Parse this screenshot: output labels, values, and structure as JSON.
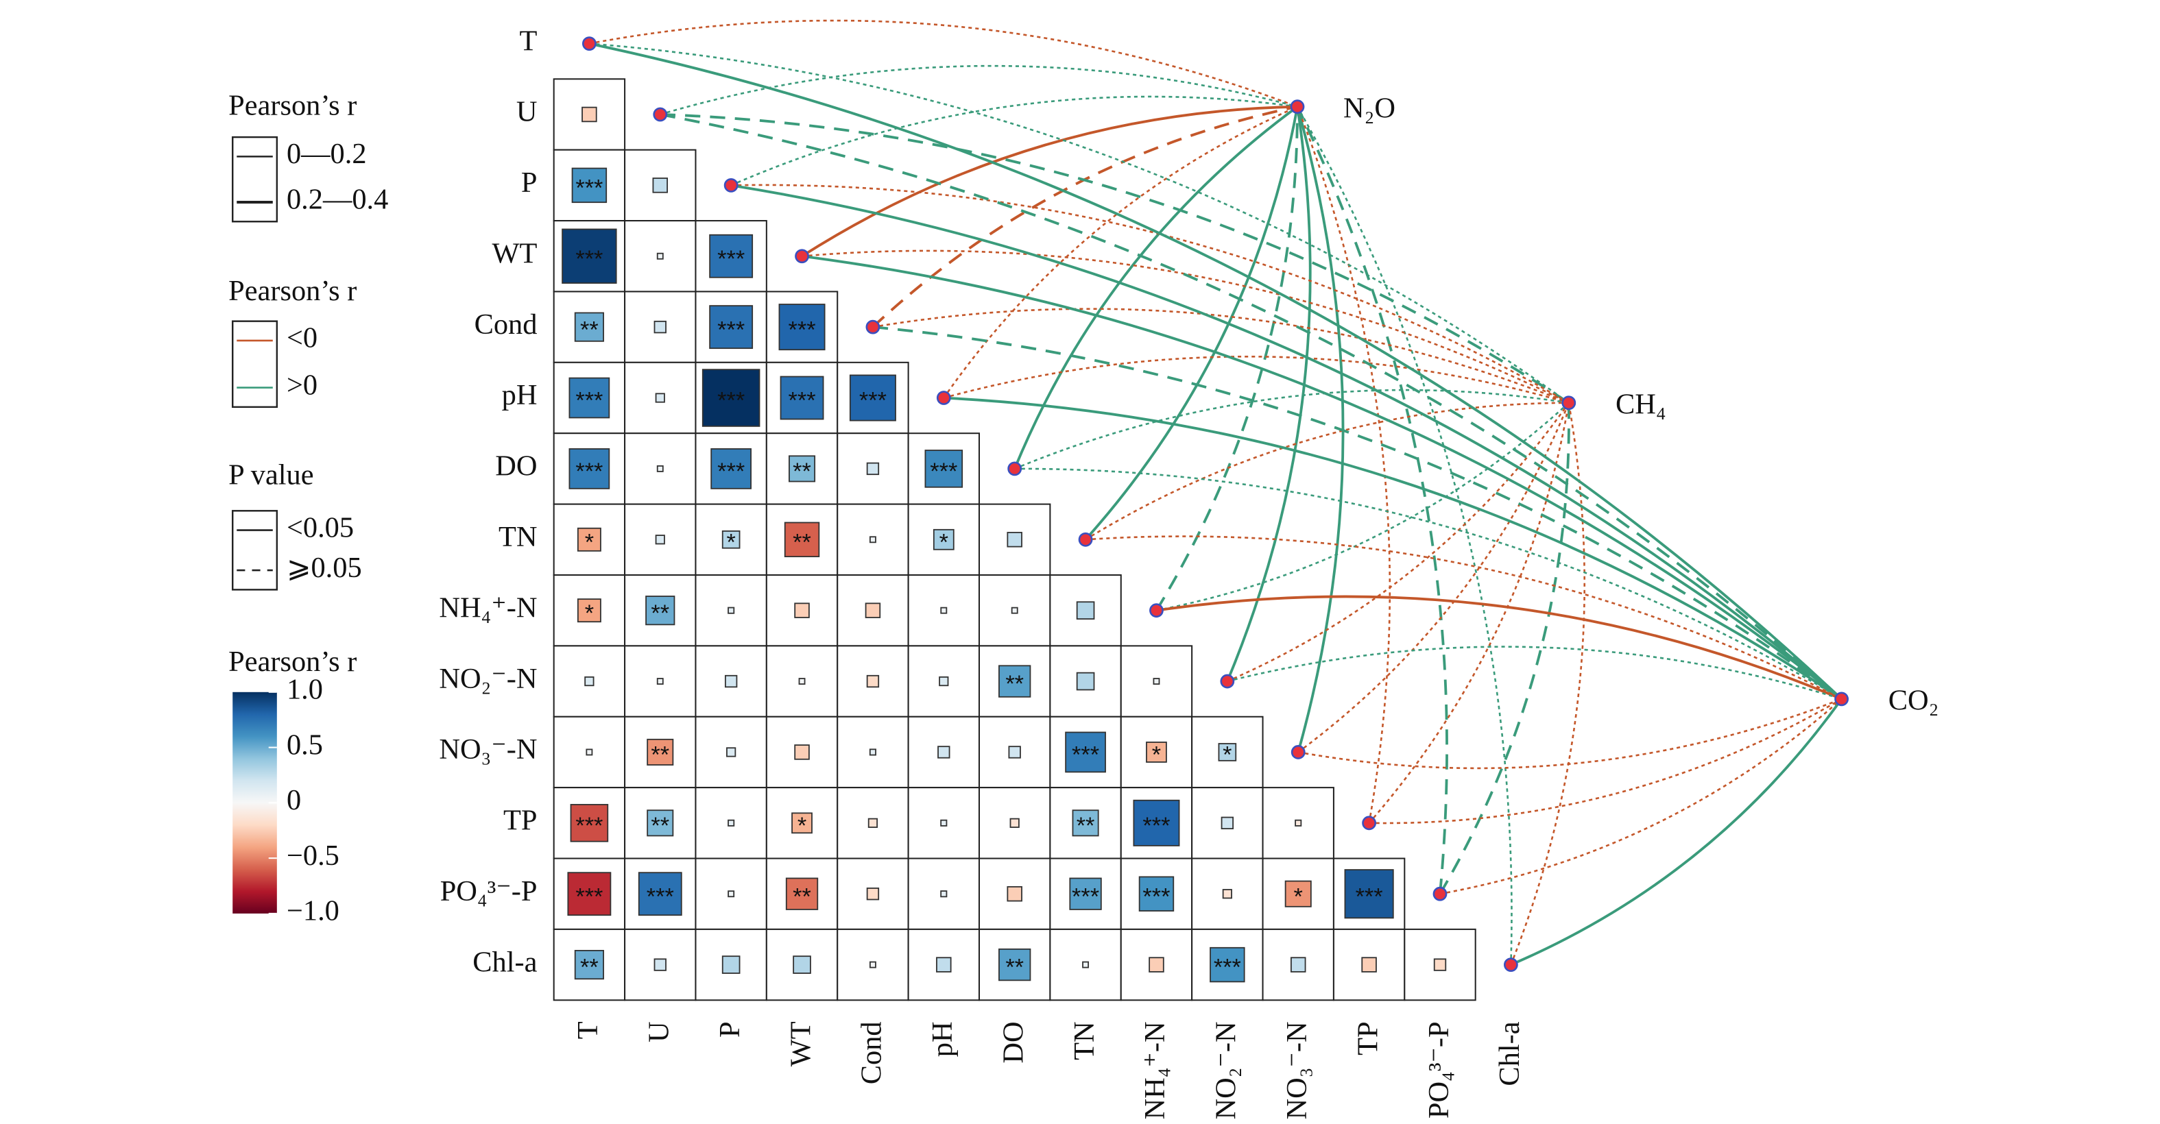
{
  "chart_data": {
    "type": "correlogram",
    "variables": [
      "T",
      "U",
      "P",
      "WT",
      "Cond",
      "pH",
      "DO",
      "TN",
      "NH₄⁺-N",
      "NO₂⁻-N",
      "NO₃⁻-N",
      "TP",
      "PO₄³⁻-P",
      "Chl-a"
    ],
    "r": [
      [
        -0.25
      ],
      [
        0.6,
        0.25
      ],
      [
        0.95,
        0.05,
        0.75
      ],
      [
        0.5,
        0.2,
        0.75,
        0.8
      ],
      [
        0.7,
        0.15,
        1.0,
        0.75,
        0.8
      ],
      [
        0.7,
        0.05,
        0.7,
        0.45,
        0.2,
        0.65
      ],
      [
        -0.4,
        0.15,
        0.3,
        -0.6,
        0.05,
        0.35,
        0.25
      ],
      [
        -0.4,
        0.5,
        0.1,
        -0.25,
        -0.25,
        0.05,
        0.05,
        0.3
      ],
      [
        0.15,
        0.05,
        0.2,
        0.02,
        -0.2,
        0.15,
        0.55,
        0.3,
        0.05
      ],
      [
        0.03,
        -0.45,
        0.15,
        -0.25,
        0.1,
        0.2,
        0.2,
        0.7,
        -0.35,
        0.3
      ],
      [
        -0.65,
        0.45,
        0.1,
        -0.35,
        -0.15,
        0.1,
        -0.15,
        0.45,
        0.8,
        0.2,
        -0.1
      ],
      [
        -0.75,
        0.75,
        0.05,
        -0.55,
        -0.2,
        0.1,
        -0.25,
        0.55,
        0.6,
        -0.15,
        -0.45,
        0.85
      ],
      [
        0.5,
        0.2,
        0.3,
        0.3,
        0.02,
        0.25,
        0.55,
        0.05,
        -0.25,
        0.6,
        0.25,
        -0.25,
        -0.2
      ]
    ],
    "sig": [
      [
        null
      ],
      [
        "***",
        null
      ],
      [
        "***",
        null,
        "***"
      ],
      [
        "**",
        null,
        "***",
        "***"
      ],
      [
        "***",
        null,
        "***",
        "***",
        "***"
      ],
      [
        "***",
        null,
        "***",
        "**",
        null,
        "***"
      ],
      [
        "*",
        null,
        "*",
        "**",
        null,
        "*",
        null
      ],
      [
        "*",
        "**",
        null,
        null,
        null,
        null,
        null,
        null
      ],
      [
        null,
        null,
        null,
        null,
        null,
        null,
        "**",
        null,
        null
      ],
      [
        null,
        "**",
        null,
        null,
        null,
        null,
        null,
        "***",
        "*",
        "*"
      ],
      [
        "***",
        "**",
        null,
        "*",
        null,
        null,
        null,
        "**",
        "***",
        null,
        null
      ],
      [
        "***",
        "***",
        null,
        "**",
        null,
        null,
        null,
        "***",
        "***",
        null,
        "*",
        "***"
      ],
      [
        "**",
        null,
        null,
        null,
        null,
        null,
        "**",
        null,
        null,
        "***",
        null,
        null,
        null
      ]
    ],
    "responses": [
      "N₂O",
      "CH₄",
      "CO₂"
    ],
    "links": [
      [
        0,
        0,
        0,
        1,
        0
      ],
      [
        1,
        0,
        1,
        1,
        0
      ],
      [
        2,
        0,
        1,
        1,
        0
      ],
      [
        3,
        0,
        0,
        0,
        1
      ],
      [
        4,
        0,
        0,
        1,
        1
      ],
      [
        5,
        0,
        0,
        1,
        0
      ],
      [
        6,
        0,
        1,
        0,
        1
      ],
      [
        7,
        0,
        1,
        0,
        1
      ],
      [
        8,
        0,
        1,
        1,
        1
      ],
      [
        9,
        0,
        1,
        0,
        1
      ],
      [
        10,
        0,
        1,
        0,
        1
      ],
      [
        11,
        0,
        0,
        1,
        0
      ],
      [
        12,
        0,
        1,
        1,
        1
      ],
      [
        13,
        0,
        1,
        1,
        0
      ],
      [
        0,
        1,
        1,
        1,
        0
      ],
      [
        1,
        1,
        1,
        1,
        1
      ],
      [
        2,
        1,
        0,
        1,
        0
      ],
      [
        3,
        1,
        0,
        1,
        0
      ],
      [
        4,
        1,
        0,
        1,
        0
      ],
      [
        5,
        1,
        0,
        1,
        0
      ],
      [
        6,
        1,
        1,
        1,
        0
      ],
      [
        7,
        1,
        0,
        1,
        0
      ],
      [
        8,
        1,
        1,
        1,
        0
      ],
      [
        9,
        1,
        0,
        1,
        0
      ],
      [
        10,
        1,
        0,
        1,
        0
      ],
      [
        11,
        1,
        0,
        1,
        0
      ],
      [
        12,
        1,
        1,
        1,
        1
      ],
      [
        13,
        1,
        0,
        1,
        0
      ],
      [
        0,
        2,
        1,
        0,
        1
      ],
      [
        1,
        2,
        1,
        1,
        1
      ],
      [
        2,
        2,
        1,
        0,
        1
      ],
      [
        3,
        2,
        1,
        0,
        1
      ],
      [
        4,
        2,
        1,
        1,
        1
      ],
      [
        5,
        2,
        1,
        0,
        1
      ],
      [
        6,
        2,
        1,
        1,
        0
      ],
      [
        7,
        2,
        0,
        1,
        0
      ],
      [
        8,
        2,
        0,
        0,
        1
      ],
      [
        9,
        2,
        1,
        1,
        0
      ],
      [
        10,
        2,
        0,
        1,
        0
      ],
      [
        11,
        2,
        0,
        1,
        0
      ],
      [
        12,
        2,
        0,
        1,
        0
      ],
      [
        13,
        2,
        1,
        0,
        1
      ]
    ],
    "legends": {
      "size": {
        "title": "Pearson’s r",
        "items": [
          "0—0.2",
          "0.2—0.4"
        ]
      },
      "sign": {
        "title": "Pearson’s r",
        "items": [
          "<0",
          ">0"
        ],
        "colors": [
          "#c4572a",
          "#3a9b7b"
        ]
      },
      "p": {
        "title": "P value",
        "items": [
          "<0.05",
          "⩾0.05"
        ]
      },
      "colorbar": {
        "title": "Pearson’s r",
        "clim": [
          -1,
          1
        ],
        "ticks": [
          {
            "value": 1,
            "label": "1.0"
          },
          0.5,
          0,
          {
            "value": -0.5,
            "label": "−0.5"
          },
          {
            "value": -1,
            "label": "−1.0"
          }
        ],
        "colors": [
          "#67001f",
          "#b2182b",
          "#d6604d",
          "#f4a582",
          "#fddbc7",
          "#f7f7f7",
          "#d1e5f0",
          "#92c5de",
          "#4393c3",
          "#2166ac",
          "#053061"
        ]
      }
    }
  }
}
